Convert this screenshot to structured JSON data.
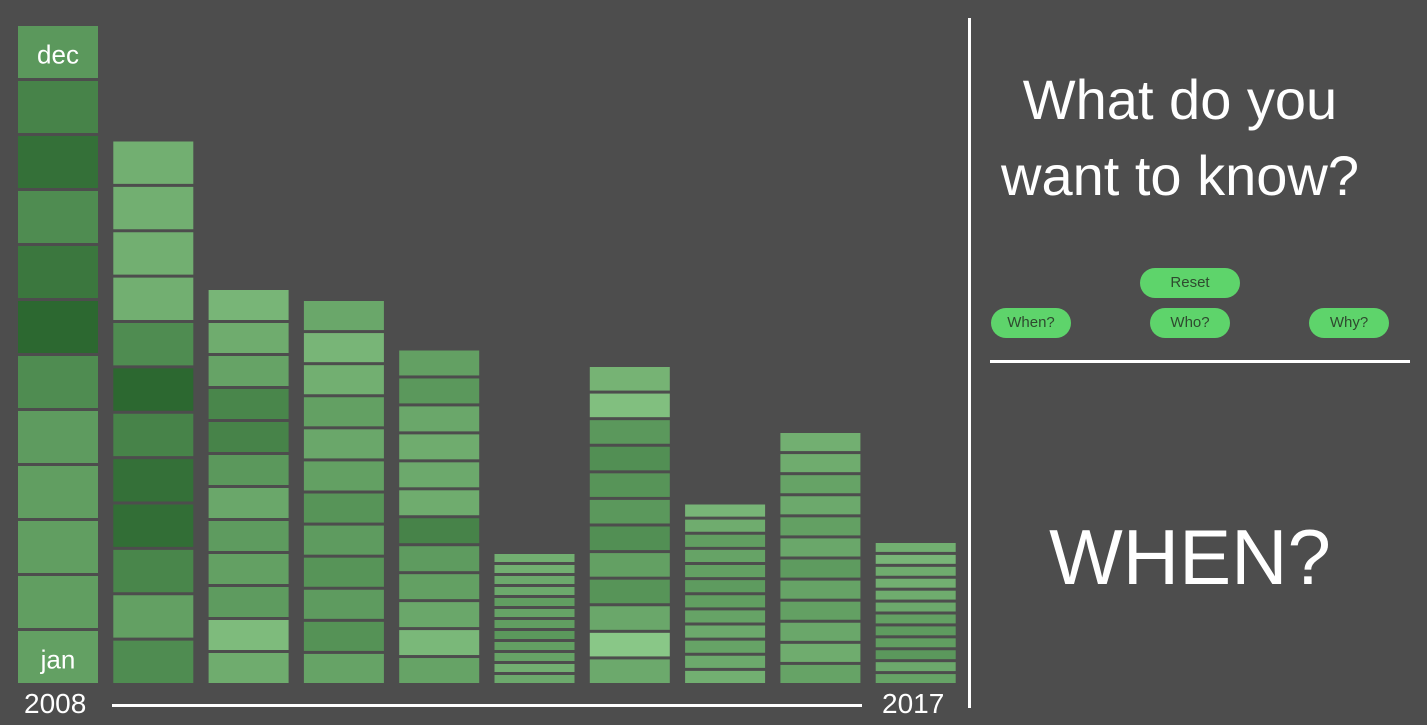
{
  "panel": {
    "question": "What do you want to know?",
    "buttons": {
      "reset": "Reset",
      "when": "When?",
      "who": "Who?",
      "why": "Why?"
    },
    "mode_label": "WHEN?"
  },
  "colors": {
    "accent": "#5ed46b",
    "background": "#4d4d4d"
  },
  "chart_data": {
    "type": "heatmap",
    "title": "",
    "start_year_label": "2008",
    "end_year_label": "2017",
    "month_label_top": "dec",
    "month_label_bottom": "jan",
    "years": [
      {
        "year": "2008",
        "total": 12.0,
        "shades": [
          0.48,
          0.5,
          0.5,
          0.5,
          0.52,
          0.65,
          0.95,
          0.82,
          0.65,
          0.88,
          0.72,
          0.55
        ]
      },
      {
        "year": "2009",
        "total": 9.9,
        "shades": [
          0.65,
          0.48,
          0.7,
          0.9,
          0.88,
          0.72,
          0.95,
          0.65,
          0.35,
          0.35,
          0.35,
          0.35
        ]
      },
      {
        "year": "2010",
        "total": 7.2,
        "shades": [
          0.38,
          0.25,
          0.52,
          0.48,
          0.52,
          0.42,
          0.55,
          0.72,
          0.7,
          0.45,
          0.38,
          0.3
        ]
      },
      {
        "year": "2011",
        "total": 7.0,
        "shades": [
          0.45,
          0.6,
          0.52,
          0.58,
          0.52,
          0.58,
          0.48,
          0.42,
          0.48,
          0.35,
          0.3,
          0.42
        ]
      },
      {
        "year": "2012",
        "total": 6.1,
        "shades": [
          0.45,
          0.28,
          0.42,
          0.48,
          0.52,
          0.72,
          0.38,
          0.4,
          0.38,
          0.42,
          0.55,
          0.48
        ]
      },
      {
        "year": "2013",
        "total": 2.4,
        "shades": [
          0.4,
          0.35,
          0.45,
          0.48,
          0.55,
          0.5,
          0.45,
          0.5,
          0.4,
          0.4,
          0.35,
          0.35
        ]
      },
      {
        "year": "2014",
        "total": 5.8,
        "shades": [
          0.4,
          0.15,
          0.42,
          0.58,
          0.48,
          0.62,
          0.55,
          0.58,
          0.62,
          0.55,
          0.22,
          0.32
        ]
      },
      {
        "year": "2015",
        "total": 3.3,
        "shades": [
          0.35,
          0.4,
          0.45,
          0.4,
          0.45,
          0.5,
          0.52,
          0.48,
          0.45,
          0.5,
          0.38,
          0.3
        ]
      },
      {
        "year": "2016",
        "total": 4.6,
        "shades": [
          0.45,
          0.38,
          0.42,
          0.48,
          0.45,
          0.52,
          0.42,
          0.48,
          0.4,
          0.45,
          0.38,
          0.35
        ]
      },
      {
        "year": "2017",
        "total": 2.6,
        "shades": [
          0.45,
          0.4,
          0.55,
          0.5,
          0.52,
          0.48,
          0.4,
          0.38,
          0.35,
          0.38,
          0.3,
          0.35
        ]
      }
    ]
  }
}
